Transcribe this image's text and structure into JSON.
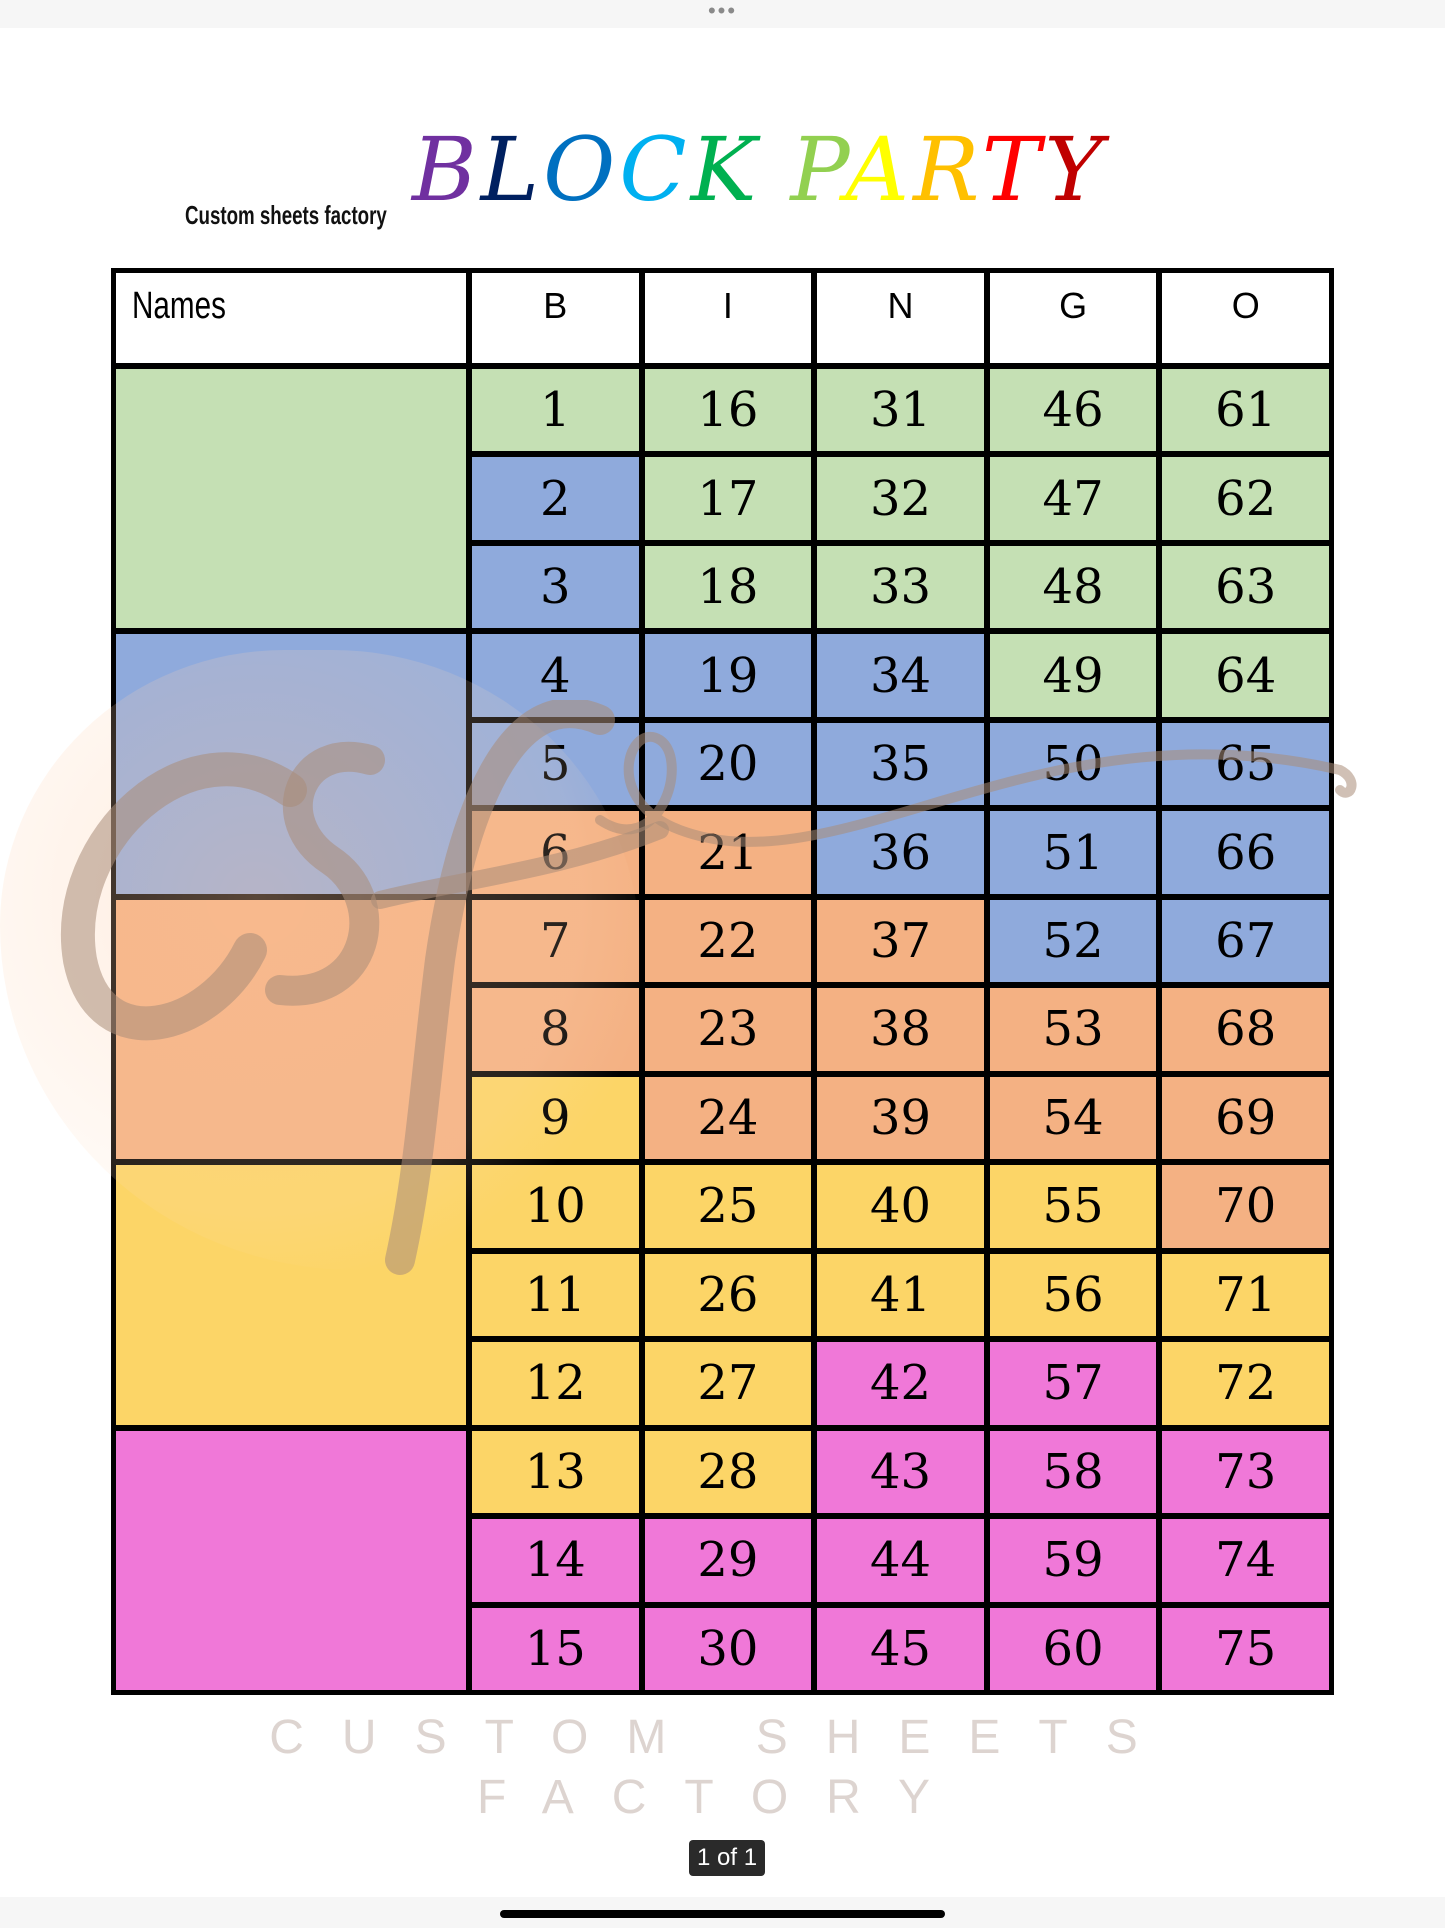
{
  "topbar": {
    "menu_icon": "ellipsis-icon",
    "label": "•••"
  },
  "brand": "Custom sheets factory",
  "title": {
    "letters": [
      {
        "ch": "B",
        "color": "#7030a0"
      },
      {
        "ch": "L",
        "color": "#002060"
      },
      {
        "ch": "O",
        "color": "#0070c0"
      },
      {
        "ch": "C",
        "color": "#00b0f0"
      },
      {
        "ch": "K",
        "color": "#00b050"
      },
      {
        "ch": " ",
        "color": "#000000"
      },
      {
        "ch": "P",
        "color": "#92d050"
      },
      {
        "ch": "A",
        "color": "#ffff00"
      },
      {
        "ch": "R",
        "color": "#ffc000"
      },
      {
        "ch": "T",
        "color": "#ff0000"
      },
      {
        "ch": "Y",
        "color": "#c00000"
      }
    ]
  },
  "colors": {
    "green": "#c5e0b4",
    "blue": "#8faadc",
    "orange": "#f4b183",
    "yellow": "#fcd567",
    "pink": "#f078d8"
  },
  "table": {
    "headers": [
      "Names",
      "B",
      "I",
      "N",
      "G",
      "O"
    ],
    "name_groups": [
      "green",
      "green",
      "green",
      "blue",
      "blue",
      "blue",
      "orange",
      "orange",
      "orange",
      "yellow",
      "yellow",
      "yellow",
      "pink",
      "pink",
      "pink"
    ],
    "rows": [
      [
        [
          "1",
          "green"
        ],
        [
          "16",
          "green"
        ],
        [
          "31",
          "green"
        ],
        [
          "46",
          "green"
        ],
        [
          "61",
          "green"
        ]
      ],
      [
        [
          "2",
          "blue"
        ],
        [
          "17",
          "green"
        ],
        [
          "32",
          "green"
        ],
        [
          "47",
          "green"
        ],
        [
          "62",
          "green"
        ]
      ],
      [
        [
          "3",
          "blue"
        ],
        [
          "18",
          "green"
        ],
        [
          "33",
          "green"
        ],
        [
          "48",
          "green"
        ],
        [
          "63",
          "green"
        ]
      ],
      [
        [
          "4",
          "blue"
        ],
        [
          "19",
          "blue"
        ],
        [
          "34",
          "blue"
        ],
        [
          "49",
          "green"
        ],
        [
          "64",
          "green"
        ]
      ],
      [
        [
          "5",
          "blue"
        ],
        [
          "20",
          "blue"
        ],
        [
          "35",
          "blue"
        ],
        [
          "50",
          "blue"
        ],
        [
          "65",
          "blue"
        ]
      ],
      [
        [
          "6",
          "orange"
        ],
        [
          "21",
          "orange"
        ],
        [
          "36",
          "blue"
        ],
        [
          "51",
          "blue"
        ],
        [
          "66",
          "blue"
        ]
      ],
      [
        [
          "7",
          "orange"
        ],
        [
          "22",
          "orange"
        ],
        [
          "37",
          "orange"
        ],
        [
          "52",
          "blue"
        ],
        [
          "67",
          "blue"
        ]
      ],
      [
        [
          "8",
          "orange"
        ],
        [
          "23",
          "orange"
        ],
        [
          "38",
          "orange"
        ],
        [
          "53",
          "orange"
        ],
        [
          "68",
          "orange"
        ]
      ],
      [
        [
          "9",
          "yellow"
        ],
        [
          "24",
          "orange"
        ],
        [
          "39",
          "orange"
        ],
        [
          "54",
          "orange"
        ],
        [
          "69",
          "orange"
        ]
      ],
      [
        [
          "10",
          "yellow"
        ],
        [
          "25",
          "yellow"
        ],
        [
          "40",
          "yellow"
        ],
        [
          "55",
          "yellow"
        ],
        [
          "70",
          "orange"
        ]
      ],
      [
        [
          "11",
          "yellow"
        ],
        [
          "26",
          "yellow"
        ],
        [
          "41",
          "yellow"
        ],
        [
          "56",
          "yellow"
        ],
        [
          "71",
          "yellow"
        ]
      ],
      [
        [
          "12",
          "yellow"
        ],
        [
          "27",
          "yellow"
        ],
        [
          "42",
          "pink"
        ],
        [
          "57",
          "pink"
        ],
        [
          "72",
          "yellow"
        ]
      ],
      [
        [
          "13",
          "yellow"
        ],
        [
          "28",
          "yellow"
        ],
        [
          "43",
          "pink"
        ],
        [
          "58",
          "pink"
        ],
        [
          "73",
          "pink"
        ]
      ],
      [
        [
          "14",
          "pink"
        ],
        [
          "29",
          "pink"
        ],
        [
          "44",
          "pink"
        ],
        [
          "59",
          "pink"
        ],
        [
          "74",
          "pink"
        ]
      ],
      [
        [
          "15",
          "pink"
        ],
        [
          "30",
          "pink"
        ],
        [
          "45",
          "pink"
        ],
        [
          "60",
          "pink"
        ],
        [
          "75",
          "pink"
        ]
      ]
    ]
  },
  "watermark": {
    "logo": "csf",
    "line1": "CUSTOM SHEETS",
    "line2": "FACTORY"
  },
  "pager": "1 of 1"
}
